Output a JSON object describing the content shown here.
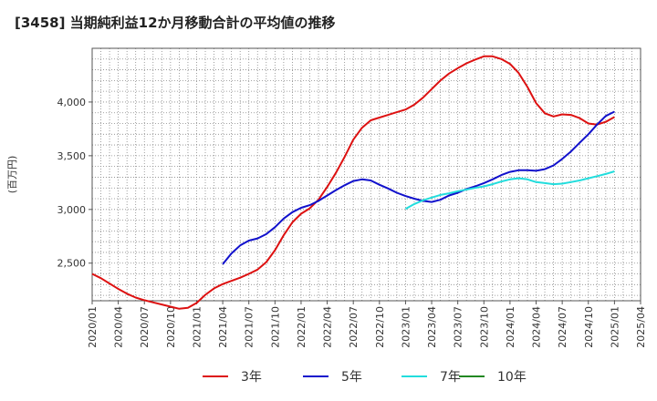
{
  "chart_data": {
    "type": "line",
    "title": "[3458]  当期純利益12か月移動合計の平均値の推移",
    "ylabel": "(百万円)",
    "xlabel": "",
    "ylim": [
      2150,
      4500
    ],
    "yticks": [
      2500,
      3000,
      3500,
      4000
    ],
    "ytick_labels": [
      "2,500",
      "3,000",
      "3,500",
      "4,000"
    ],
    "xticks": [
      "2020/01",
      "2020/04",
      "2020/07",
      "2020/10",
      "2021/01",
      "2021/04",
      "2021/07",
      "2021/10",
      "2022/01",
      "2022/04",
      "2022/07",
      "2022/10",
      "2023/01",
      "2023/04",
      "2023/07",
      "2023/10",
      "2024/01",
      "2024/04",
      "2024/07",
      "2024/10",
      "2025/01",
      "2025/04"
    ],
    "grid": true,
    "legend": "bottom",
    "series": [
      {
        "name": "3年",
        "color": "#dd1111",
        "x": [
          "2020/01",
          "2020/02",
          "2020/03",
          "2020/04",
          "2020/05",
          "2020/06",
          "2020/07",
          "2020/08",
          "2020/09",
          "2020/10",
          "2020/11",
          "2020/12",
          "2021/01",
          "2021/02",
          "2021/03",
          "2021/04",
          "2021/05",
          "2021/06",
          "2021/07",
          "2021/08",
          "2021/09",
          "2021/10",
          "2021/11",
          "2021/12",
          "2022/01",
          "2022/02",
          "2022/03",
          "2022/04",
          "2022/05",
          "2022/06",
          "2022/07",
          "2022/08",
          "2022/09",
          "2022/10",
          "2022/11",
          "2022/12",
          "2023/01",
          "2023/02",
          "2023/03",
          "2023/04",
          "2023/05",
          "2023/06",
          "2023/07",
          "2023/08",
          "2023/09",
          "2023/10",
          "2023/11",
          "2023/12",
          "2024/01",
          "2024/02",
          "2024/03",
          "2024/04",
          "2024/05",
          "2024/06",
          "2024/07",
          "2024/08",
          "2024/09",
          "2024/10",
          "2024/11",
          "2024/12",
          "2025/01"
        ],
        "values": [
          2400,
          2360,
          2310,
          2260,
          2215,
          2180,
          2155,
          2135,
          2115,
          2095,
          2075,
          2085,
          2130,
          2205,
          2265,
          2305,
          2335,
          2365,
          2400,
          2440,
          2510,
          2620,
          2760,
          2880,
          2960,
          3010,
          3090,
          3210,
          3340,
          3490,
          3650,
          3760,
          3830,
          3855,
          3880,
          3905,
          3930,
          3975,
          4040,
          4120,
          4200,
          4265,
          4315,
          4360,
          4395,
          4425,
          4425,
          4400,
          4355,
          4270,
          4140,
          3990,
          3895,
          3865,
          3885,
          3880,
          3850,
          3800,
          3790,
          3815,
          3860
        ]
      },
      {
        "name": "5年",
        "color": "#1111cc",
        "x": [
          "2021/04",
          "2021/05",
          "2021/06",
          "2021/07",
          "2021/08",
          "2021/09",
          "2021/10",
          "2021/11",
          "2021/12",
          "2022/01",
          "2022/02",
          "2022/03",
          "2022/04",
          "2022/05",
          "2022/06",
          "2022/07",
          "2022/08",
          "2022/09",
          "2022/10",
          "2022/11",
          "2022/12",
          "2023/01",
          "2023/02",
          "2023/03",
          "2023/04",
          "2023/05",
          "2023/06",
          "2023/07",
          "2023/08",
          "2023/09",
          "2023/10",
          "2023/11",
          "2023/12",
          "2024/01",
          "2024/02",
          "2024/03",
          "2024/04",
          "2024/05",
          "2024/06",
          "2024/07",
          "2024/08",
          "2024/09",
          "2024/10",
          "2024/11",
          "2024/12",
          "2025/01"
        ],
        "values": [
          2490,
          2590,
          2665,
          2710,
          2730,
          2770,
          2835,
          2915,
          2975,
          3015,
          3040,
          3080,
          3130,
          3180,
          3225,
          3265,
          3280,
          3270,
          3230,
          3195,
          3155,
          3125,
          3100,
          3080,
          3070,
          3090,
          3130,
          3155,
          3190,
          3215,
          3245,
          3280,
          3320,
          3350,
          3365,
          3365,
          3360,
          3375,
          3410,
          3470,
          3540,
          3620,
          3700,
          3790,
          3870,
          3910
        ]
      },
      {
        "name": "7年",
        "color": "#22dddd",
        "x": [
          "2023/01",
          "2023/02",
          "2023/03",
          "2023/04",
          "2023/05",
          "2023/06",
          "2023/07",
          "2023/08",
          "2023/09",
          "2023/10",
          "2023/11",
          "2023/12",
          "2024/01",
          "2024/02",
          "2024/03",
          "2024/04",
          "2024/05",
          "2024/06",
          "2024/07",
          "2024/08",
          "2024/09",
          "2024/10",
          "2024/11",
          "2024/12",
          "2025/01"
        ],
        "values": [
          3005,
          3050,
          3085,
          3110,
          3135,
          3150,
          3170,
          3185,
          3200,
          3215,
          3235,
          3260,
          3280,
          3290,
          3280,
          3255,
          3245,
          3235,
          3240,
          3255,
          3270,
          3290,
          3310,
          3330,
          3355
        ]
      },
      {
        "name": "10年",
        "color": "#228822",
        "x": [],
        "values": []
      }
    ]
  }
}
